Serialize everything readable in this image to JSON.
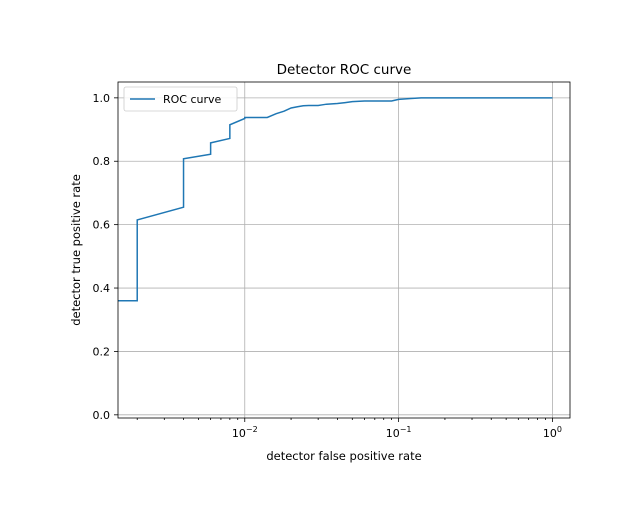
{
  "chart_data": {
    "type": "line",
    "title": "Detector ROC curve",
    "xlabel": "detector false positive rate",
    "ylabel": "detector true positive rate",
    "xscale": "log",
    "xlim": [
      0.0015,
      1.3
    ],
    "ylim": [
      -0.01,
      1.05
    ],
    "xticks": [
      {
        "value": 0.01,
        "base": "10",
        "exp": "−2"
      },
      {
        "value": 0.1,
        "base": "10",
        "exp": "−1"
      },
      {
        "value": 1,
        "base": "10",
        "exp": "0"
      }
    ],
    "yticks": [
      {
        "value": 0.0,
        "label": "0.0"
      },
      {
        "value": 0.2,
        "label": "0.2"
      },
      {
        "value": 0.4,
        "label": "0.4"
      },
      {
        "value": 0.6,
        "label": "0.6"
      },
      {
        "value": 0.8,
        "label": "0.8"
      },
      {
        "value": 1.0,
        "label": "1.0"
      }
    ],
    "grid": true,
    "legend": {
      "position": "upper-left"
    },
    "series": [
      {
        "name": "ROC curve",
        "color": "#1f77b4",
        "x": [
          0.0015,
          0.002,
          0.002,
          0.004,
          0.004,
          0.006,
          0.006,
          0.008,
          0.008,
          0.01,
          0.01,
          0.014,
          0.016,
          0.018,
          0.02,
          0.022,
          0.024,
          0.026,
          0.03,
          0.032,
          0.034,
          0.04,
          0.045,
          0.05,
          0.06,
          0.08,
          0.09,
          0.1,
          0.12,
          0.14,
          0.2,
          0.3,
          0.5,
          0.7,
          1.0
        ],
        "y": [
          0.36,
          0.36,
          0.615,
          0.655,
          0.808,
          0.822,
          0.858,
          0.872,
          0.915,
          0.935,
          0.938,
          0.938,
          0.95,
          0.958,
          0.968,
          0.972,
          0.975,
          0.976,
          0.976,
          0.978,
          0.98,
          0.982,
          0.985,
          0.988,
          0.99,
          0.99,
          0.99,
          0.995,
          0.998,
          1.0,
          1.0,
          1.0,
          1.0,
          1.0,
          1.0
        ]
      }
    ]
  }
}
